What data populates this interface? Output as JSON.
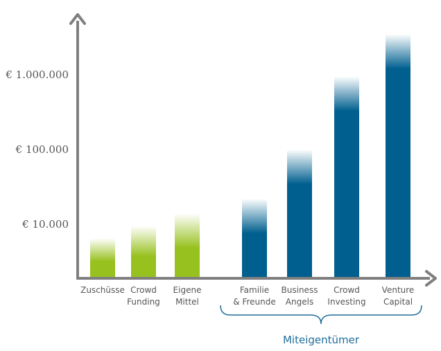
{
  "chart_data": {
    "type": "bar",
    "title": "",
    "xlabel": "",
    "ylabel": "",
    "yscale": "log",
    "ylim": [
      2000,
      4000000
    ],
    "y_ticks": [
      {
        "value": 10000,
        "label": "€ 10.000"
      },
      {
        "value": 100000,
        "label": "€ 100.000"
      },
      {
        "value": 1000000,
        "label": "€ 1.000.000"
      }
    ],
    "categories": [
      {
        "lines": [
          "Zuschüsse"
        ],
        "value": 6500,
        "color": "#97c11f"
      },
      {
        "lines": [
          "Crowd",
          "Funding"
        ],
        "value": 9500,
        "color": "#97c11f"
      },
      {
        "lines": [
          "Eigene",
          "Mittel"
        ],
        "value": 14000,
        "color": "#97c11f"
      },
      {
        "lines": [
          "Familie",
          "& Freunde"
        ],
        "value": 22000,
        "color": "#005f8f"
      },
      {
        "lines": [
          "Business",
          "Angels"
        ],
        "value": 100000,
        "color": "#005f8f"
      },
      {
        "lines": [
          "Crowd",
          "Investing"
        ],
        "value": 950000,
        "color": "#005f8f"
      },
      {
        "lines": [
          "Venture",
          "Capital"
        ],
        "value": 3500000,
        "color": "#005f8f"
      }
    ],
    "group_label": "Miteigentümer",
    "grid": false,
    "legend": "none",
    "axis_color": "#7f7f7f",
    "brace_color": "#1f6e9a"
  }
}
